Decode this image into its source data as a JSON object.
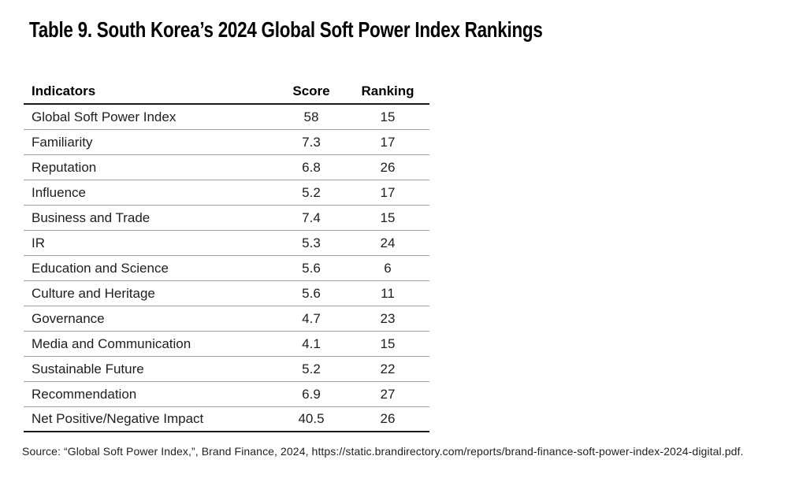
{
  "title": "Table 9. South Korea’s 2024 Global Soft Power Index Rankings",
  "table": {
    "columns": [
      "Indicators",
      "Score",
      "Ranking"
    ],
    "rows": [
      {
        "indicator": "Global Soft Power Index",
        "score": "58",
        "ranking": "15"
      },
      {
        "indicator": "Familiarity",
        "score": "7.3",
        "ranking": "17"
      },
      {
        "indicator": "Reputation",
        "score": "6.8",
        "ranking": "26"
      },
      {
        "indicator": "Influence",
        "score": "5.2",
        "ranking": "17"
      },
      {
        "indicator": "Business and Trade",
        "score": "7.4",
        "ranking": "15"
      },
      {
        "indicator": "IR",
        "score": "5.3",
        "ranking": "24"
      },
      {
        "indicator": "Education and Science",
        "score": "5.6",
        "ranking": "6"
      },
      {
        "indicator": "Culture and Heritage",
        "score": "5.6",
        "ranking": "11"
      },
      {
        "indicator": "Governance",
        "score": "4.7",
        "ranking": "23"
      },
      {
        "indicator": "Media and Communication",
        "score": "4.1",
        "ranking": "15"
      },
      {
        "indicator": "Sustainable Future",
        "score": "5.2",
        "ranking": "22"
      },
      {
        "indicator": "Recommendation",
        "score": "6.9",
        "ranking": "27"
      },
      {
        "indicator": "Net Positive/Negative Impact",
        "score": "40.5",
        "ranking": "26"
      }
    ]
  },
  "source": "Source: “Global Soft Power Index,”, Brand Finance, 2024, https://static.brandirectory.com/reports/brand-finance-soft-power-index-2024-digital.pdf.",
  "colors": {
    "background": "#ffffff",
    "text": "#1e1e1e",
    "heavy_rule": "#1b1b1b",
    "light_rule": "#a3a3a3"
  }
}
